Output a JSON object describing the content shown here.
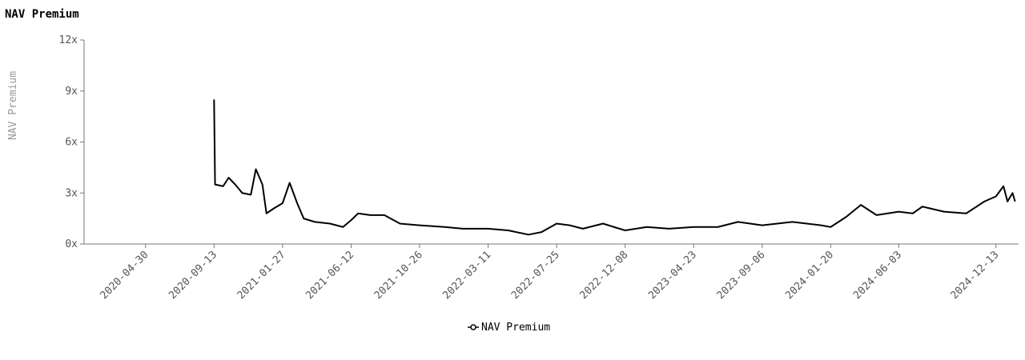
{
  "chart_data": {
    "type": "line",
    "title": "NAV Premium",
    "y_label": "NAV Premium",
    "x": [
      "2020-09-13",
      "2020-09-15",
      "2020-10-01",
      "2020-10-12",
      "2020-10-25",
      "2020-11-08",
      "2020-11-25",
      "2020-12-05",
      "2020-12-18",
      "2020-12-26",
      "2021-01-10",
      "2021-01-27",
      "2021-02-10",
      "2021-02-25",
      "2021-03-10",
      "2021-04-01",
      "2021-05-01",
      "2021-05-27",
      "2021-06-12",
      "2021-06-26",
      "2021-07-20",
      "2021-08-17",
      "2021-09-17",
      "2021-10-26",
      "2021-12-15",
      "2022-01-20",
      "2022-03-11",
      "2022-04-20",
      "2022-05-30",
      "2022-06-25",
      "2022-07-25",
      "2022-08-20",
      "2022-09-15",
      "2022-10-25",
      "2022-12-08",
      "2023-01-20",
      "2023-03-05",
      "2023-04-23",
      "2023-06-10",
      "2023-07-20",
      "2023-09-06",
      "2023-11-05",
      "2024-01-01",
      "2024-01-20",
      "2024-02-20",
      "2024-03-20",
      "2024-04-20",
      "2024-06-03",
      "2024-07-01",
      "2024-07-20",
      "2024-09-01",
      "2024-10-15",
      "2024-11-20",
      "2024-12-13",
      "2024-12-28",
      "2025-01-05",
      "2025-01-15",
      "2025-01-20"
    ],
    "series": [
      {
        "name": "NAV Premium",
        "color": "#000000",
        "values": [
          8.5,
          3.5,
          3.4,
          3.9,
          3.5,
          3.0,
          2.9,
          4.4,
          3.5,
          1.8,
          2.1,
          2.4,
          3.6,
          2.4,
          1.5,
          1.3,
          1.2,
          1.0,
          1.4,
          1.8,
          1.7,
          1.7,
          1.2,
          1.1,
          1.0,
          0.9,
          0.9,
          0.8,
          0.55,
          0.7,
          1.2,
          1.1,
          0.9,
          1.2,
          0.8,
          1.0,
          0.9,
          1.0,
          1.0,
          1.3,
          1.1,
          1.3,
          1.1,
          1.0,
          1.6,
          2.3,
          1.7,
          1.9,
          1.8,
          2.2,
          1.9,
          1.8,
          2.5,
          2.8,
          3.4,
          2.5,
          3.0,
          2.5
        ]
      }
    ],
    "xlim": [
      "2019-12-30",
      "2025-01-27"
    ],
    "xticks": [
      "2020-04-30",
      "2020-09-13",
      "2021-01-27",
      "2021-06-12",
      "2021-10-26",
      "2022-03-11",
      "2022-07-25",
      "2022-12-08",
      "2023-04-23",
      "2023-09-06",
      "2024-01-20",
      "2024-06-03",
      "2024-12-13"
    ],
    "ylim": [
      0,
      12
    ],
    "yticks": [
      {
        "value": 0,
        "label": "0x"
      },
      {
        "value": 3,
        "label": "3x"
      },
      {
        "value": 6,
        "label": "6x"
      },
      {
        "value": 9,
        "label": "9x"
      },
      {
        "value": 12,
        "label": "12x"
      }
    ],
    "legend": "bottom"
  }
}
